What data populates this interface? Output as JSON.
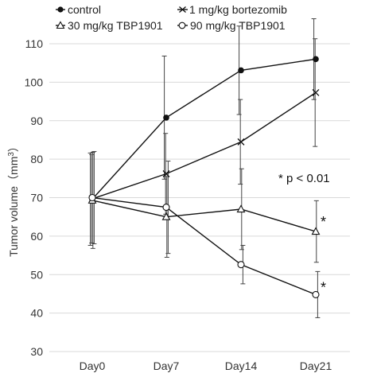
{
  "chart_data": {
    "type": "line",
    "categories": [
      "Day0",
      "Day7",
      "Day14",
      "Day21"
    ],
    "ylabel_prefix": "Tumor volume（mm",
    "ylabel_sup": "3",
    "ylabel_suffix": "）",
    "ylim": [
      30,
      110
    ],
    "yticks": [
      30,
      40,
      50,
      60,
      70,
      80,
      90,
      100,
      110
    ],
    "grid": true,
    "legend_placement": "top",
    "series": [
      {
        "name": "control",
        "marker": "filled-circle",
        "values": [
          69.6,
          90.8,
          103.1,
          106.0
        ],
        "errors": [
          12.0,
          16.0,
          11.5,
          10.5
        ]
      },
      {
        "name": "1 mg/kg bortezomib",
        "marker": "cross",
        "values": [
          69.7,
          76.2,
          84.5,
          97.3
        ],
        "errors": [
          11.5,
          10.5,
          11.0,
          14.0
        ]
      },
      {
        "name": "30 mg/kg TBP1901",
        "marker": "triangle",
        "values": [
          69.3,
          65.0,
          67.0,
          61.2
        ],
        "errors": [
          12.5,
          10.5,
          10.5,
          8.0
        ]
      },
      {
        "name": "90 mg/kg TBP1901",
        "marker": "open-circle",
        "values": [
          70.0,
          67.5,
          52.6,
          44.8
        ],
        "errors": [
          12.0,
          12.0,
          5.0,
          6.0
        ]
      }
    ],
    "annotations": [
      {
        "text": "* p < 0.01"
      },
      {
        "text": "*",
        "category": "Day21",
        "near_value": 64.5
      },
      {
        "text": "*",
        "category": "Day21",
        "near_value": 47.5
      }
    ]
  }
}
